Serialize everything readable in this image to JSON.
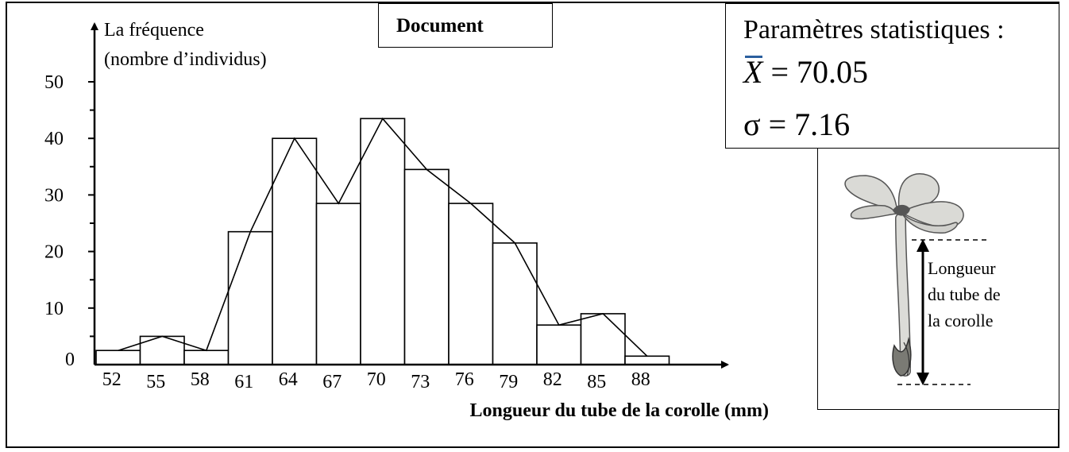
{
  "document_label": "Document",
  "stats": {
    "title": "Paramètres statistiques :",
    "mean_symbol": "X",
    "mean_value": "= 70.05",
    "sd_symbol": "σ",
    "sd_value": "= 7.16"
  },
  "flower": {
    "label_lines": [
      "Longueur",
      "du tube de",
      "la corolle"
    ]
  },
  "chart_data": {
    "type": "bar",
    "ylabel_lines": [
      "La fréquence",
      "(nombre d’individus)"
    ],
    "xlabel": "Longueur du tube de la corolle (mm)",
    "categories": [
      "52",
      "55",
      "58",
      "61",
      "64",
      "67",
      "70",
      "73",
      "76",
      "79",
      "82",
      "85",
      "88"
    ],
    "values": [
      2.5,
      5,
      2.5,
      23.5,
      40,
      28.5,
      43.5,
      34.5,
      28.5,
      21.5,
      7,
      9,
      1.5
    ],
    "line_overlay": [
      2.5,
      5,
      2.5,
      23.5,
      40,
      28.5,
      43.5,
      34.5,
      28.5,
      21.5,
      7,
      9,
      1.5
    ],
    "yticks": [
      "0",
      "10",
      "20",
      "30",
      "40",
      "50"
    ],
    "ylim": [
      0,
      50
    ],
    "grid": false,
    "legend": "none"
  },
  "colors": {
    "ink": "#000000",
    "mean_bar_accent": "#2b5f9e",
    "petal_fill": "#dadad6",
    "sepal_fill": "#7a7a74"
  }
}
